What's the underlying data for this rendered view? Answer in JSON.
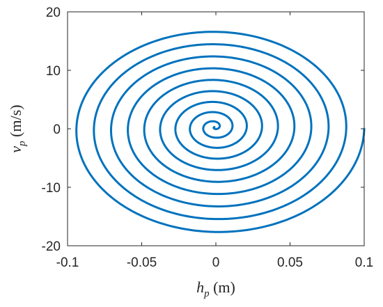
{
  "chart_data": {
    "type": "line",
    "title": "",
    "xlabel": {
      "symbol": "h",
      "sub": "p",
      "unit": " (m)"
    },
    "ylabel": {
      "symbol": "v",
      "sub": "p",
      "unit": " (m/s)"
    },
    "xlim": [
      -0.1,
      0.1
    ],
    "ylim": [
      -20,
      20
    ],
    "xticks": [
      -0.1,
      -0.05,
      0,
      0.05,
      0.1
    ],
    "xtick_labels": [
      "-0.1",
      "-0.05",
      "0",
      "0.05",
      "0.1"
    ],
    "yticks": [
      -20,
      -10,
      0,
      10,
      20
    ],
    "ytick_labels": [
      "-20",
      "-10",
      "0",
      "10",
      "20"
    ],
    "grid": false,
    "box": true,
    "series": [
      {
        "color": "#0072BD",
        "shape": "inward spiral, clockwise",
        "start": [
          0.1,
          0
        ],
        "end": [
          0.0,
          0
        ],
        "h_amplitude_start": 0.1,
        "v_amplitude_start": 18.2,
        "turns": 9.5,
        "center_offset_h": -0.001,
        "center_offset_v": 0.3
      }
    ]
  }
}
